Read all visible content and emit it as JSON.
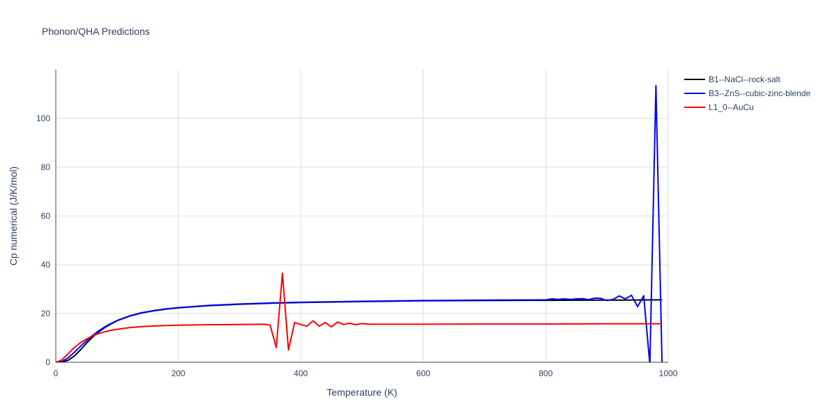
{
  "chart_data": {
    "type": "line",
    "title": "Phonon/QHA Predictions",
    "xlabel": "Temperature (K)",
    "ylabel": "Cp numerical (J/K/mol)",
    "xlim": [
      0,
      1000
    ],
    "ylim": [
      0,
      120
    ],
    "x_ticks": [
      0,
      200,
      400,
      600,
      800,
      1000
    ],
    "y_ticks": [
      0,
      20,
      40,
      60,
      80,
      100
    ],
    "grid": true,
    "legend_position": "top-right",
    "series": [
      {
        "name": "B1--NaCl--rock-salt",
        "color": "#000000",
        "points": [
          [
            0,
            0
          ],
          [
            10,
            0.1
          ],
          [
            20,
            0.8
          ],
          [
            30,
            2.5
          ],
          [
            40,
            5
          ],
          [
            50,
            7.8
          ],
          [
            60,
            10.3
          ],
          [
            70,
            12.5
          ],
          [
            80,
            14.2
          ],
          [
            90,
            15.7
          ],
          [
            100,
            17
          ],
          [
            120,
            18.9
          ],
          [
            140,
            20.2
          ],
          [
            160,
            21.1
          ],
          [
            180,
            21.8
          ],
          [
            200,
            22.3
          ],
          [
            250,
            23.2
          ],
          [
            300,
            23.8
          ],
          [
            350,
            24.2
          ],
          [
            400,
            24.5
          ],
          [
            500,
            24.9
          ],
          [
            600,
            25.2
          ],
          [
            700,
            25.3
          ],
          [
            800,
            25.4
          ],
          [
            900,
            25.5
          ],
          [
            990,
            25.6
          ]
        ]
      },
      {
        "name": "B3--ZnS--cubic-zinc-blende",
        "color": "#0000ff",
        "points": [
          [
            0,
            0
          ],
          [
            10,
            0.3
          ],
          [
            20,
            1.8
          ],
          [
            30,
            4
          ],
          [
            40,
            6.5
          ],
          [
            50,
            8.8
          ],
          [
            60,
            11
          ],
          [
            70,
            12.9
          ],
          [
            80,
            14.5
          ],
          [
            90,
            15.9
          ],
          [
            100,
            17.1
          ],
          [
            120,
            19
          ],
          [
            140,
            20.3
          ],
          [
            160,
            21.2
          ],
          [
            180,
            21.9
          ],
          [
            200,
            22.4
          ],
          [
            250,
            23.3
          ],
          [
            300,
            23.9
          ],
          [
            350,
            24.3
          ],
          [
            400,
            24.6
          ],
          [
            500,
            25
          ],
          [
            600,
            25.3
          ],
          [
            700,
            25.5
          ],
          [
            800,
            25.6
          ],
          [
            810,
            26
          ],
          [
            820,
            25.8
          ],
          [
            830,
            26
          ],
          [
            840,
            25.8
          ],
          [
            850,
            26
          ],
          [
            860,
            26.1
          ],
          [
            870,
            25.7
          ],
          [
            880,
            26.3
          ],
          [
            890,
            26.2
          ],
          [
            900,
            25.3
          ],
          [
            910,
            25.8
          ],
          [
            920,
            27.2
          ],
          [
            930,
            26
          ],
          [
            940,
            27.5
          ],
          [
            950,
            22.8
          ],
          [
            960,
            27.3
          ],
          [
            970,
            -1
          ],
          [
            980,
            113.5
          ],
          [
            990,
            -1
          ]
        ]
      },
      {
        "name": "L1_0--AuCu",
        "color": "#ff0000",
        "points": [
          [
            0,
            0
          ],
          [
            10,
            1
          ],
          [
            20,
            3.5
          ],
          [
            30,
            6
          ],
          [
            40,
            8
          ],
          [
            50,
            9.5
          ],
          [
            60,
            10.8
          ],
          [
            70,
            11.8
          ],
          [
            80,
            12.5
          ],
          [
            90,
            13.1
          ],
          [
            100,
            13.5
          ],
          [
            120,
            14.2
          ],
          [
            140,
            14.6
          ],
          [
            160,
            14.9
          ],
          [
            200,
            15.2
          ],
          [
            250,
            15.4
          ],
          [
            300,
            15.5
          ],
          [
            340,
            15.6
          ],
          [
            350,
            15.2
          ],
          [
            360,
            6
          ],
          [
            370,
            36.5
          ],
          [
            380,
            5
          ],
          [
            390,
            16.3
          ],
          [
            400,
            15.5
          ],
          [
            410,
            14.8
          ],
          [
            420,
            17
          ],
          [
            430,
            14.8
          ],
          [
            440,
            16.3
          ],
          [
            450,
            14.5
          ],
          [
            460,
            16.5
          ],
          [
            470,
            15.5
          ],
          [
            480,
            16
          ],
          [
            490,
            15.4
          ],
          [
            500,
            15.9
          ],
          [
            510,
            15.6
          ],
          [
            600,
            15.6
          ],
          [
            700,
            15.7
          ],
          [
            800,
            15.7
          ],
          [
            900,
            15.8
          ],
          [
            990,
            15.8
          ]
        ]
      }
    ]
  }
}
